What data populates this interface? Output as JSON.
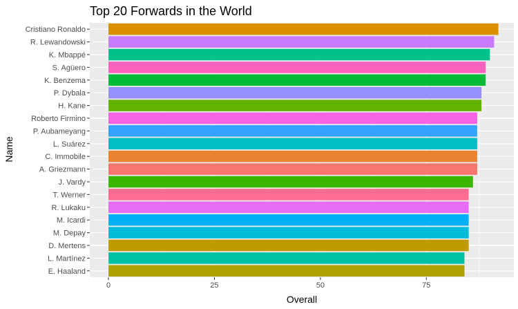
{
  "chart_data": {
    "type": "bar",
    "orientation": "horizontal",
    "title": "Top 20 Forwards in the World",
    "xlabel": "Overall",
    "ylabel": "Name",
    "xlim": [
      0,
      95
    ],
    "x_ticks": [
      0,
      25,
      50,
      75
    ],
    "grid": true,
    "legend": "none",
    "categories": [
      "Cristiano Ronaldo",
      "R. Lewandowski",
      "K. Mbappé",
      "S. Agüero",
      "K. Benzema",
      "P. Dybala",
      "H. Kane",
      "Roberto Firmino",
      "P. Aubameyang",
      "L. Suárez",
      "C. Immobile",
      "A. Griezmann",
      "J. Vardy",
      "T. Werner",
      "R. Lukaku",
      "M. Icardi",
      "M. Depay",
      "D. Mertens",
      "L. Martínez",
      "E. Haaland"
    ],
    "values": [
      92,
      91,
      90,
      89,
      89,
      88,
      88,
      87,
      87,
      87,
      87,
      87,
      86,
      85,
      85,
      85,
      85,
      85,
      84,
      84
    ],
    "colors": [
      "#DB8E00",
      "#C77CFF",
      "#00C08B",
      "#FF62BC",
      "#00BA38",
      "#9590FF",
      "#64B200",
      "#F564E3",
      "#35A2FF",
      "#00BFC4",
      "#EA8331",
      "#F8766D",
      "#39B600",
      "#FF6C91",
      "#E76BF3",
      "#00B0F6",
      "#00BCD8",
      "#C09B00",
      "#00C1A3",
      "#AEA200"
    ]
  }
}
